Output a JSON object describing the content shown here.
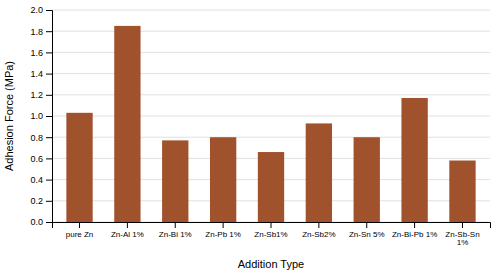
{
  "chart_data": {
    "type": "bar",
    "categories": [
      "pure Zn",
      "Zn-Al 1%",
      "Zn-Bi 1%",
      "Zn-Pb 1%",
      "Zn-Sb1%",
      "Zn-Sb2%",
      "Zn-Sn 5%",
      "Zn-Bi-Pb 1%",
      "Zn-Sb-Sn\n1%"
    ],
    "values": [
      1.03,
      1.85,
      0.77,
      0.8,
      0.66,
      0.93,
      0.8,
      1.17,
      0.58
    ],
    "color": "#A0522D",
    "xlabel": "Addition Type",
    "ylabel": "Adhesion Force (MPa)",
    "ylim": [
      0,
      2.0
    ],
    "yticks": [
      {
        "value": 0,
        "label": "0.0"
      },
      0.2,
      0.4,
      0.6,
      0.8,
      {
        "value": 1.0,
        "label": "1.0"
      },
      1.2,
      1.4,
      1.6,
      1.8,
      {
        "value": 2.0,
        "label": "2.0"
      }
    ],
    "grid": true
  }
}
